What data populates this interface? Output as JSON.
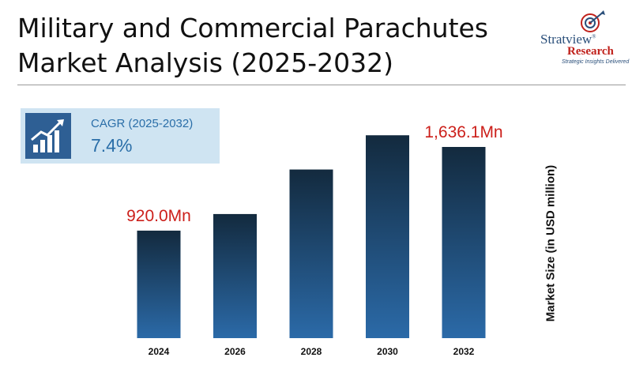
{
  "header": {
    "title_line1": "Military and Commercial Parachutes",
    "title_line2": "Market Analysis (2025-2032)"
  },
  "logo": {
    "brand": "Stratview",
    "registered": "®",
    "sub": "Research",
    "tagline": "Strategic Insights Delivered"
  },
  "cagr": {
    "label": "CAGR (2025-2032)",
    "value": "7.4%",
    "icon": "growth-chart-icon"
  },
  "colors": {
    "bar_top": "#132a3e",
    "bar_bottom": "#2b6aa8",
    "data_label": "#cc1f1a",
    "cagr_bg": "#cfe4f2",
    "cagr_icon_bg": "#2e5f94"
  },
  "chart_data": {
    "type": "bar",
    "categories": [
      "2024",
      "2026",
      "2028",
      "2030",
      "2032"
    ],
    "values": [
      920.0,
      1062,
      1443,
      1736,
      1636.1
    ],
    "data_labels": [
      "920.0Mn",
      "",
      "",
      "",
      "1,636.1Mn"
    ],
    "title": "",
    "xlabel": "",
    "ylabel": "Market Size (in USD million)",
    "grid": false,
    "legend": "none"
  }
}
